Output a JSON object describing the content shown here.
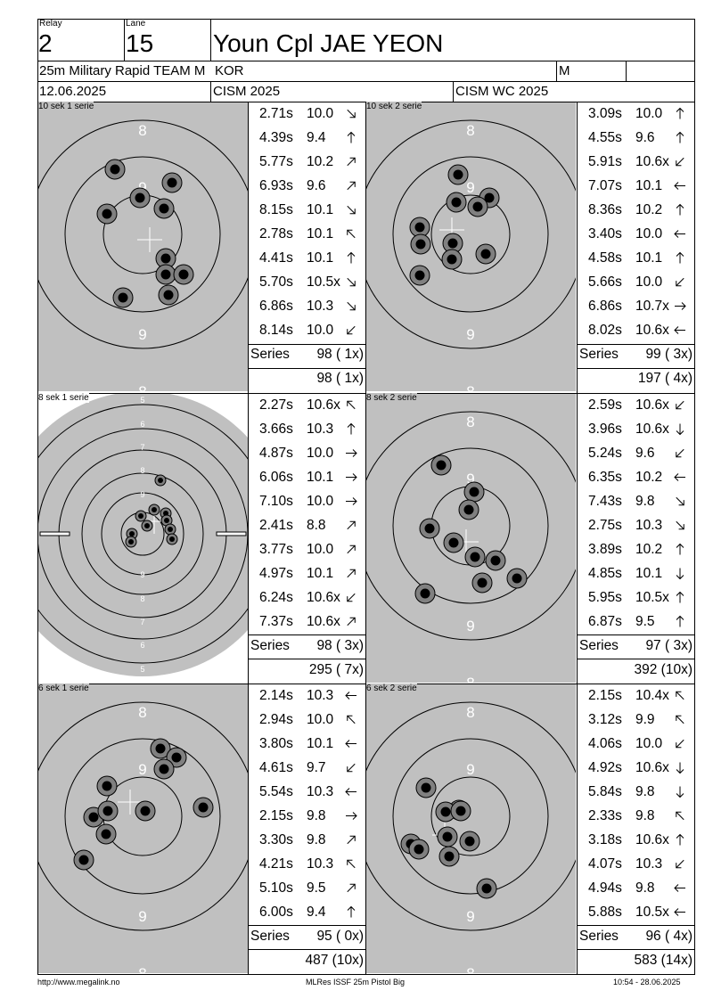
{
  "header": {
    "relay_label": "Relay",
    "relay": "2",
    "lane_label": "Lane",
    "lane": "15",
    "name": "Youn Cpl JAE YEON",
    "event": "25m Military Rapid TEAM M",
    "nation": "KOR",
    "gender": "M",
    "date": "12.06.2025",
    "competition": "CISM 2025",
    "championship": "CISM WC 2025"
  },
  "panels": [
    {
      "title": "10 sek 1 serie",
      "series_label": "Series",
      "series_total": "98 ( 1x)",
      "cumulative": "98 ( 1x)",
      "shots": [
        [
          "2.71s",
          "10.0",
          "se"
        ],
        [
          "4.39s",
          "9.4",
          "n"
        ],
        [
          "5.77s",
          "10.2",
          "ne"
        ],
        [
          "6.93s",
          "9.6",
          "ne"
        ],
        [
          "8.15s",
          "10.1",
          "se"
        ],
        [
          "2.78s",
          "10.1",
          "nw"
        ],
        [
          "4.41s",
          "10.1",
          "n"
        ],
        [
          "5.70s",
          "10.5x",
          "se"
        ],
        [
          "6.86s",
          "10.3",
          "se"
        ],
        [
          "8.14s",
          "10.0",
          "sw"
        ]
      ]
    },
    {
      "title": "10 sek 2 serie",
      "series_label": "Series",
      "series_total": "99 ( 3x)",
      "cumulative": "197 ( 4x)",
      "shots": [
        [
          "3.09s",
          "10.0",
          "n"
        ],
        [
          "4.55s",
          "9.6",
          "n"
        ],
        [
          "5.91s",
          "10.6x",
          "sw"
        ],
        [
          "7.07s",
          "10.1",
          "w"
        ],
        [
          "8.36s",
          "10.2",
          "n"
        ],
        [
          "3.40s",
          "10.0",
          "w"
        ],
        [
          "4.58s",
          "10.1",
          "n"
        ],
        [
          "5.66s",
          "10.0",
          "sw"
        ],
        [
          "6.86s",
          "10.7x",
          "e"
        ],
        [
          "8.02s",
          "10.6x",
          "w"
        ]
      ]
    },
    {
      "title": "8 sek 1 serie",
      "series_label": "Series",
      "series_total": "98 ( 3x)",
      "cumulative": "295 ( 7x)",
      "shots": [
        [
          "2.27s",
          "10.6x",
          "nw"
        ],
        [
          "3.66s",
          "10.3",
          "n"
        ],
        [
          "4.87s",
          "10.0",
          "e"
        ],
        [
          "6.06s",
          "10.1",
          "e"
        ],
        [
          "7.10s",
          "10.0",
          "e"
        ],
        [
          "2.41s",
          "8.8",
          "ne"
        ],
        [
          "3.77s",
          "10.0",
          "ne"
        ],
        [
          "4.97s",
          "10.1",
          "ne"
        ],
        [
          "6.24s",
          "10.6x",
          "sw"
        ],
        [
          "7.37s",
          "10.6x",
          "ne"
        ]
      ]
    },
    {
      "title": "8 sek 2 serie",
      "series_label": "Series",
      "series_total": "97 ( 3x)",
      "cumulative": "392 (10x)",
      "shots": [
        [
          "2.59s",
          "10.6x",
          "sw"
        ],
        [
          "3.96s",
          "10.6x",
          "s"
        ],
        [
          "5.24s",
          "9.6",
          "sw"
        ],
        [
          "6.35s",
          "10.2",
          "w"
        ],
        [
          "7.43s",
          "9.8",
          "se"
        ],
        [
          "2.75s",
          "10.3",
          "se"
        ],
        [
          "3.89s",
          "10.2",
          "n"
        ],
        [
          "4.85s",
          "10.1",
          "s"
        ],
        [
          "5.95s",
          "10.5x",
          "n"
        ],
        [
          "6.87s",
          "9.5",
          "n"
        ]
      ]
    },
    {
      "title": "6 sek 1 serie",
      "series_label": "Series",
      "series_total": "95 ( 0x)",
      "cumulative": "487 (10x)",
      "shots": [
        [
          "2.14s",
          "10.3",
          "w"
        ],
        [
          "2.94s",
          "10.0",
          "nw"
        ],
        [
          "3.80s",
          "10.1",
          "w"
        ],
        [
          "4.61s",
          "9.7",
          "sw"
        ],
        [
          "5.54s",
          "10.3",
          "w"
        ],
        [
          "2.15s",
          "9.8",
          "e"
        ],
        [
          "3.30s",
          "9.8",
          "ne"
        ],
        [
          "4.21s",
          "10.3",
          "nw"
        ],
        [
          "5.10s",
          "9.5",
          "ne"
        ],
        [
          "6.00s",
          "9.4",
          "n"
        ]
      ]
    },
    {
      "title": "6 sek 2 serie",
      "series_label": "Series",
      "series_total": "96 ( 4x)",
      "cumulative": "583 (14x)",
      "shots": [
        [
          "2.15s",
          "10.4x",
          "nw"
        ],
        [
          "3.12s",
          "9.9",
          "nw"
        ],
        [
          "4.06s",
          "10.0",
          "sw"
        ],
        [
          "4.92s",
          "10.6x",
          "s"
        ],
        [
          "5.84s",
          "9.8",
          "s"
        ],
        [
          "2.33s",
          "9.8",
          "nw"
        ],
        [
          "3.18s",
          "10.6x",
          "n"
        ],
        [
          "4.07s",
          "10.3",
          "sw"
        ],
        [
          "4.94s",
          "9.8",
          "w"
        ],
        [
          "5.88s",
          "10.5x",
          "w"
        ]
      ]
    }
  ],
  "ring_labels": {
    "outer": "8",
    "middle": "9"
  },
  "precision_ring_labels": [
    "5",
    "6",
    "7",
    "8",
    "9"
  ],
  "footer": {
    "left": "http://www.megalink.no",
    "center": "MLRes ISSF 25m Pistol Big",
    "right": "10:54 - 28.06.2025"
  }
}
